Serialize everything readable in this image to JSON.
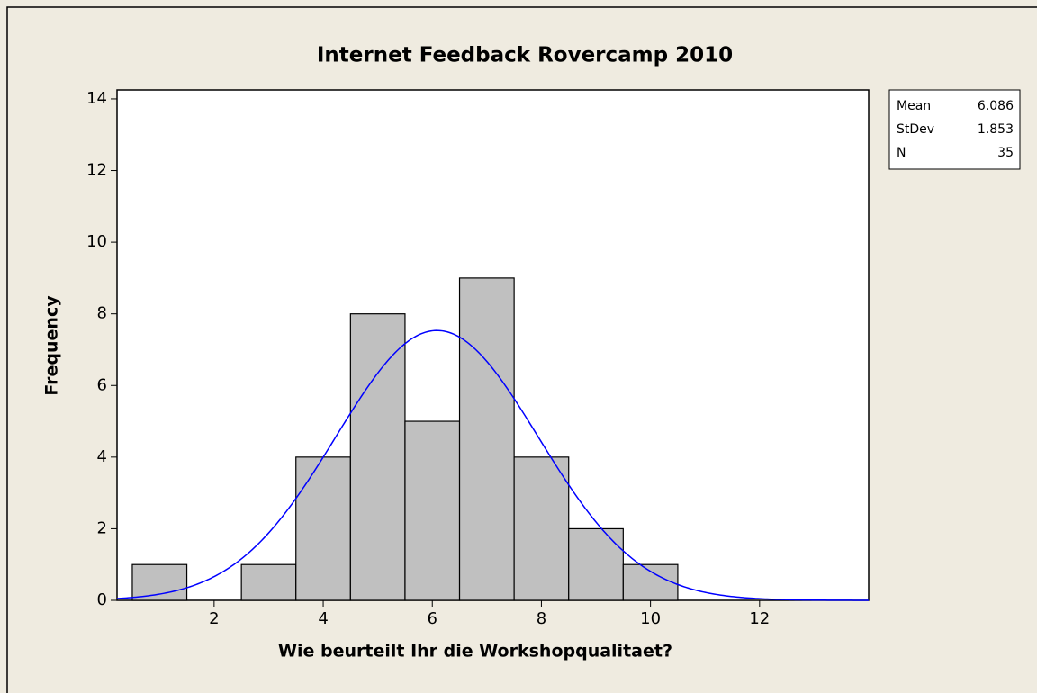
{
  "chart_data": {
    "type": "histogram",
    "title": "Internet Feedback Rovercamp 2010",
    "xlabel": "Wie beurteilt Ihr die Workshopqualitaet?",
    "ylabel": "Frequency",
    "bins": [
      0.5,
      1.5,
      2.5,
      3.5,
      4.5,
      5.5,
      6.5,
      7.5,
      8.5,
      9.5,
      10.5
    ],
    "values": [
      1,
      0,
      1,
      4,
      8,
      5,
      9,
      4,
      2,
      1
    ],
    "color": "#c0c0c0",
    "curve_color": "#0000ff",
    "xlim": [
      0.22,
      14.0
    ],
    "xticks": [
      2,
      4,
      6,
      8,
      10,
      12
    ],
    "ylim": [
      0,
      14.25
    ],
    "yticks": [
      0,
      2,
      4,
      6,
      8,
      10,
      12,
      14
    ],
    "stats": [
      {
        "label": "Mean",
        "value": 6.086
      },
      {
        "label": "StDev",
        "value": 1.853
      },
      {
        "label": "N",
        "value": 35
      }
    ]
  }
}
